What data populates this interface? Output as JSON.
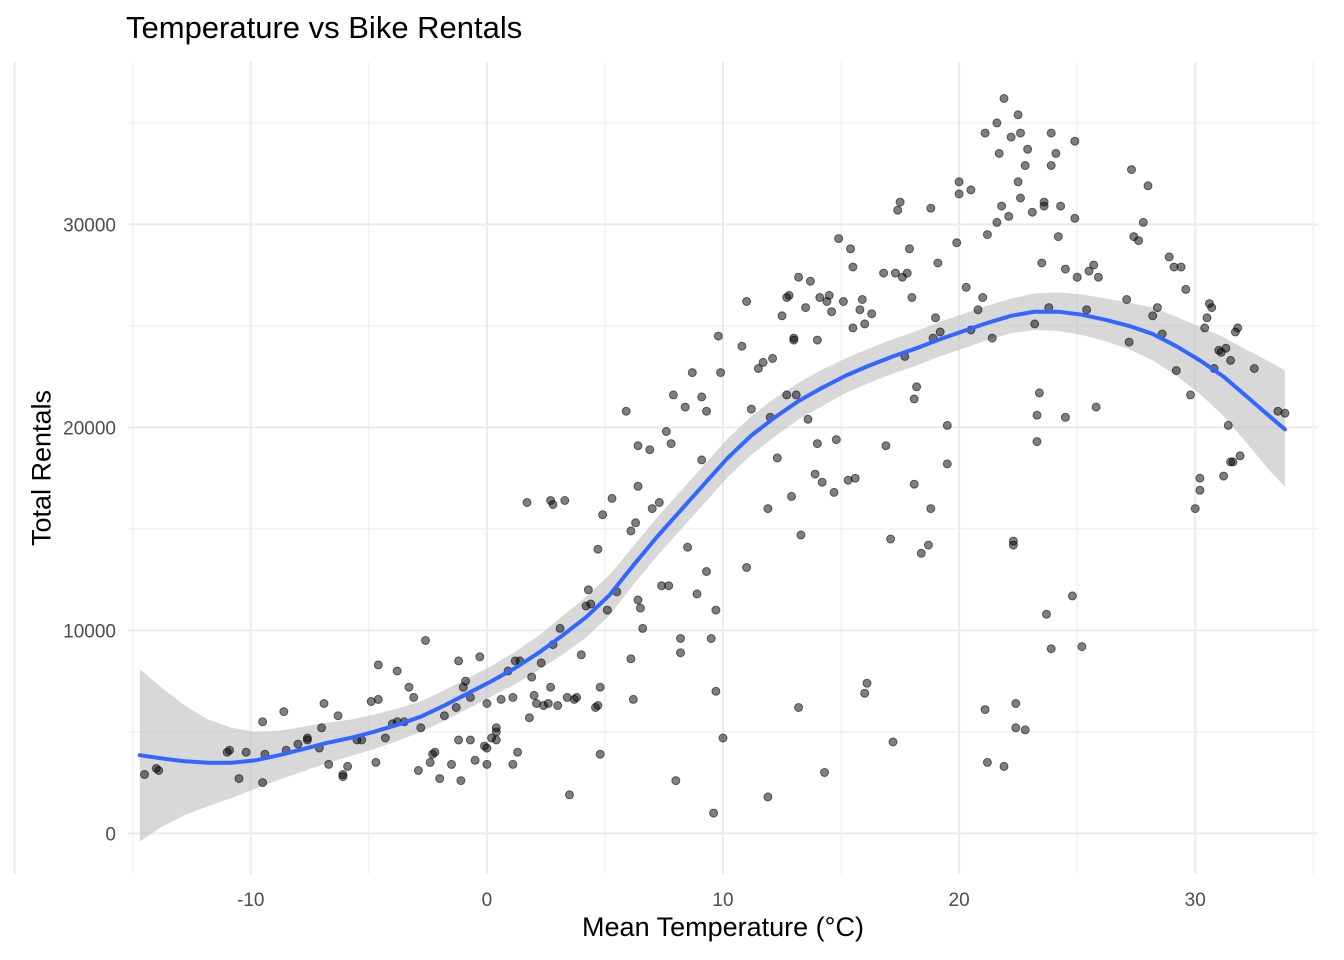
{
  "chart_data": {
    "type": "scatter",
    "title": "Temperature vs Bike Rentals",
    "xlabel": "Mean Temperature (°C)",
    "ylabel": "Total Rentals",
    "xlim": [
      -15.2,
      35.2
    ],
    "ylim": [
      -2000,
      38000
    ],
    "x_ticks": [
      -10,
      0,
      10,
      20,
      30
    ],
    "y_ticks": [
      0,
      10000,
      20000,
      30000
    ],
    "grid": true,
    "legend": "none",
    "colors": {
      "points": "#000000",
      "smooth_line": "#3366ff",
      "ribbon": "#bebebe",
      "grid": "#ebebeb",
      "tick_label": "#4d4d4d"
    },
    "points": [
      [
        -14.5,
        2900
      ],
      [
        -14,
        3200
      ],
      [
        -13.9,
        3100
      ],
      [
        -11,
        4000
      ],
      [
        -10.9,
        4100
      ],
      [
        -10.5,
        2700
      ],
      [
        -10.2,
        4000
      ],
      [
        -9.5,
        5500
      ],
      [
        -9.4,
        3900
      ],
      [
        -9.5,
        2500
      ],
      [
        -8.6,
        6000
      ],
      [
        -8.5,
        4100
      ],
      [
        -8,
        4400
      ],
      [
        -7.6,
        4600
      ],
      [
        -7.6,
        4700
      ],
      [
        -7.1,
        4200
      ],
      [
        -7,
        5200
      ],
      [
        -6.9,
        6400
      ],
      [
        -6.7,
        3400
      ],
      [
        -6.3,
        5800
      ],
      [
        -6.1,
        2900
      ],
      [
        -6.1,
        2800
      ],
      [
        -5.9,
        3300
      ],
      [
        -5.5,
        4600
      ],
      [
        -5.3,
        4600
      ],
      [
        -4.9,
        6500
      ],
      [
        -4.7,
        3500
      ],
      [
        -4.6,
        6600
      ],
      [
        -4.6,
        8300
      ],
      [
        -4.3,
        4700
      ],
      [
        -4,
        5400
      ],
      [
        -3.8,
        5500
      ],
      [
        -3.8,
        8000
      ],
      [
        -3.5,
        5500
      ],
      [
        -3.3,
        7200
      ],
      [
        -3.1,
        6700
      ],
      [
        -2.9,
        3100
      ],
      [
        -2.8,
        5200
      ],
      [
        -2.6,
        9500
      ],
      [
        -2.4,
        3500
      ],
      [
        -2.3,
        3900
      ],
      [
        -2.2,
        4000
      ],
      [
        -2,
        2700
      ],
      [
        -1.8,
        5800
      ],
      [
        -1.5,
        3400
      ],
      [
        -1.3,
        6200
      ],
      [
        -1.2,
        4600
      ],
      [
        -1.2,
        8500
      ],
      [
        -1.1,
        2600
      ],
      [
        -1,
        7200
      ],
      [
        -0.9,
        7500
      ],
      [
        -0.7,
        6700
      ],
      [
        -0.7,
        4600
      ],
      [
        -0.5,
        3600
      ],
      [
        -0.3,
        8700
      ],
      [
        -0.1,
        4300
      ],
      [
        0,
        3400
      ],
      [
        0,
        4200
      ],
      [
        0,
        6400
      ],
      [
        0.2,
        4700
      ],
      [
        0.4,
        5000
      ],
      [
        0.4,
        5200
      ],
      [
        0.4,
        4600
      ],
      [
        0.6,
        6600
      ],
      [
        0.9,
        8000
      ],
      [
        1.1,
        6700
      ],
      [
        1.1,
        3400
      ],
      [
        1.2,
        8500
      ],
      [
        1.3,
        4000
      ],
      [
        1.4,
        8500
      ],
      [
        1.7,
        16300
      ],
      [
        1.8,
        5700
      ],
      [
        1.9,
        7700
      ],
      [
        2,
        6800
      ],
      [
        2.1,
        6400
      ],
      [
        2.3,
        8400
      ],
      [
        2.4,
        6300
      ],
      [
        2.6,
        6400
      ],
      [
        2.7,
        16400
      ],
      [
        2.7,
        7200
      ],
      [
        2.8,
        16200
      ],
      [
        2.8,
        9300
      ],
      [
        3,
        6300
      ],
      [
        3.1,
        10100
      ],
      [
        3.3,
        16400
      ],
      [
        3.4,
        6700
      ],
      [
        3.5,
        1900
      ],
      [
        3.7,
        6600
      ],
      [
        3.8,
        6700
      ],
      [
        4,
        8800
      ],
      [
        4.2,
        11200
      ],
      [
        4.3,
        12000
      ],
      [
        4.4,
        11300
      ],
      [
        4.6,
        6200
      ],
      [
        4.7,
        6300
      ],
      [
        4.7,
        14000
      ],
      [
        4.8,
        3900
      ],
      [
        4.8,
        7200
      ],
      [
        4.9,
        15700
      ],
      [
        5.1,
        11000
      ],
      [
        5.3,
        16500
      ],
      [
        5.5,
        11900
      ],
      [
        5.9,
        20800
      ],
      [
        6.1,
        14900
      ],
      [
        6.3,
        15300
      ],
      [
        6.1,
        8600
      ],
      [
        6.2,
        6600
      ],
      [
        6.4,
        17100
      ],
      [
        6.4,
        11500
      ],
      [
        6.4,
        19100
      ],
      [
        6.5,
        11100
      ],
      [
        6.6,
        10100
      ],
      [
        6.9,
        18900
      ],
      [
        7,
        16000
      ],
      [
        7.3,
        16300
      ],
      [
        7.4,
        12200
      ],
      [
        7.6,
        19800
      ],
      [
        7.7,
        12200
      ],
      [
        7.8,
        19200
      ],
      [
        7.9,
        21600
      ],
      [
        8,
        2600
      ],
      [
        8.2,
        8900
      ],
      [
        8.2,
        9600
      ],
      [
        8.4,
        21000
      ],
      [
        8.5,
        14100
      ],
      [
        8.7,
        22700
      ],
      [
        8.9,
        11800
      ],
      [
        9.1,
        21500
      ],
      [
        9.1,
        18400
      ],
      [
        9.3,
        20800
      ],
      [
        9.3,
        12900
      ],
      [
        9.5,
        9600
      ],
      [
        9.6,
        1000
      ],
      [
        9.7,
        11000
      ],
      [
        9.7,
        7000
      ],
      [
        9.8,
        24500
      ],
      [
        9.9,
        22700
      ],
      [
        10,
        4700
      ],
      [
        10.8,
        24000
      ],
      [
        11,
        13100
      ],
      [
        11,
        26200
      ],
      [
        11.2,
        20900
      ],
      [
        11.5,
        22900
      ],
      [
        11.7,
        23200
      ],
      [
        11.9,
        16000
      ],
      [
        11.9,
        1800
      ],
      [
        12,
        20500
      ],
      [
        12.1,
        23400
      ],
      [
        12.3,
        18500
      ],
      [
        12.5,
        25500
      ],
      [
        12.7,
        21600
      ],
      [
        12.7,
        26400
      ],
      [
        12.8,
        26500
      ],
      [
        12.9,
        16600
      ],
      [
        13,
        24400
      ],
      [
        13,
        24300
      ],
      [
        13.1,
        21600
      ],
      [
        13.2,
        27400
      ],
      [
        13.2,
        6200
      ],
      [
        13.3,
        14700
      ],
      [
        13.5,
        25900
      ],
      [
        13.6,
        20400
      ],
      [
        13.7,
        27200
      ],
      [
        13.9,
        17700
      ],
      [
        14,
        24300
      ],
      [
        14,
        19200
      ],
      [
        14.1,
        26400
      ],
      [
        14.2,
        17300
      ],
      [
        14.3,
        3000
      ],
      [
        14.4,
        26200
      ],
      [
        14.5,
        26500
      ],
      [
        14.6,
        25700
      ],
      [
        14.7,
        16800
      ],
      [
        14.8,
        19400
      ],
      [
        14.9,
        29300
      ],
      [
        15.1,
        26200
      ],
      [
        15.3,
        17400
      ],
      [
        15.4,
        28800
      ],
      [
        15.5,
        27900
      ],
      [
        15.5,
        24900
      ],
      [
        15.6,
        17500
      ],
      [
        15.8,
        25800
      ],
      [
        15.9,
        26300
      ],
      [
        16,
        6900
      ],
      [
        16.1,
        7400
      ],
      [
        16,
        25100
      ],
      [
        16.3,
        25600
      ],
      [
        16.8,
        27600
      ],
      [
        16.9,
        19100
      ],
      [
        17.1,
        14500
      ],
      [
        17.2,
        4500
      ],
      [
        17.3,
        27600
      ],
      [
        17.4,
        30700
      ],
      [
        17.5,
        31100
      ],
      [
        17.6,
        27400
      ],
      [
        17.7,
        23500
      ],
      [
        17.8,
        27600
      ],
      [
        17.9,
        28800
      ],
      [
        18,
        26400
      ],
      [
        18.1,
        17200
      ],
      [
        18.1,
        21400
      ],
      [
        18.2,
        22000
      ],
      [
        18.4,
        13800
      ],
      [
        18.7,
        14200
      ],
      [
        18.8,
        16000
      ],
      [
        18.8,
        30800
      ],
      [
        18.9,
        24400
      ],
      [
        19,
        25400
      ],
      [
        19.1,
        28100
      ],
      [
        19.2,
        24700
      ],
      [
        19.5,
        18200
      ],
      [
        19.5,
        20100
      ],
      [
        19.9,
        29100
      ],
      [
        20,
        31500
      ],
      [
        20,
        32100
      ],
      [
        20.3,
        26900
      ],
      [
        20.5,
        24800
      ],
      [
        20.5,
        31700
      ],
      [
        20.8,
        25800
      ],
      [
        21,
        26400
      ],
      [
        21.1,
        6100
      ],
      [
        21.1,
        34500
      ],
      [
        21.2,
        3500
      ],
      [
        21.2,
        29500
      ],
      [
        21.4,
        24400
      ],
      [
        21.6,
        30100
      ],
      [
        21.6,
        35000
      ],
      [
        21.7,
        33500
      ],
      [
        21.8,
        30900
      ],
      [
        21.9,
        3300
      ],
      [
        21.9,
        36200
      ],
      [
        22.1,
        30400
      ],
      [
        22.2,
        34300
      ],
      [
        22.3,
        14200
      ],
      [
        22.3,
        14400
      ],
      [
        22.4,
        6400
      ],
      [
        22.4,
        5200
      ],
      [
        22.5,
        32100
      ],
      [
        22.5,
        35400
      ],
      [
        22.6,
        31300
      ],
      [
        22.6,
        34500
      ],
      [
        22.8,
        5100
      ],
      [
        22.8,
        32900
      ],
      [
        22.9,
        33700
      ],
      [
        23.1,
        30600
      ],
      [
        23.2,
        25100
      ],
      [
        23.3,
        19300
      ],
      [
        23.3,
        20600
      ],
      [
        23.4,
        21700
      ],
      [
        23.5,
        28100
      ],
      [
        23.6,
        30900
      ],
      [
        23.6,
        31100
      ],
      [
        23.7,
        10800
      ],
      [
        23.8,
        25900
      ],
      [
        23.9,
        9100
      ],
      [
        23.9,
        34500
      ],
      [
        23.9,
        32900
      ],
      [
        24.1,
        33500
      ],
      [
        24.2,
        29400
      ],
      [
        24.3,
        30900
      ],
      [
        24.5,
        27800
      ],
      [
        24.5,
        20500
      ],
      [
        24.8,
        11700
      ],
      [
        24.9,
        34100
      ],
      [
        24.9,
        30300
      ],
      [
        25,
        27400
      ],
      [
        25.2,
        9200
      ],
      [
        25.4,
        25800
      ],
      [
        25.5,
        27700
      ],
      [
        25.7,
        28000
      ],
      [
        25.8,
        21000
      ],
      [
        25.9,
        27400
      ],
      [
        27.1,
        26300
      ],
      [
        27.2,
        24200
      ],
      [
        27.3,
        32700
      ],
      [
        27.4,
        29400
      ],
      [
        27.6,
        29200
      ],
      [
        27.8,
        30100
      ],
      [
        28,
        31900
      ],
      [
        28.2,
        25500
      ],
      [
        28.4,
        25900
      ],
      [
        28.6,
        24600
      ],
      [
        28.9,
        28400
      ],
      [
        29.1,
        27900
      ],
      [
        29.2,
        22800
      ],
      [
        29.4,
        27900
      ],
      [
        29.6,
        26800
      ],
      [
        29.8,
        21600
      ],
      [
        30,
        16000
      ],
      [
        30.2,
        17500
      ],
      [
        30.2,
        16900
      ],
      [
        30.4,
        24900
      ],
      [
        30.5,
        25400
      ],
      [
        30.6,
        26100
      ],
      [
        30.7,
        25900
      ],
      [
        30.8,
        22900
      ],
      [
        31,
        23800
      ],
      [
        31.1,
        23700
      ],
      [
        31.2,
        17600
      ],
      [
        31.3,
        23900
      ],
      [
        31.4,
        20100
      ],
      [
        31.5,
        23300
      ],
      [
        31.5,
        18300
      ],
      [
        31.6,
        18300
      ],
      [
        31.7,
        24700
      ],
      [
        31.8,
        24900
      ],
      [
        31.9,
        18600
      ],
      [
        32.5,
        22900
      ],
      [
        33.5,
        20800
      ],
      [
        33.8,
        20700
      ]
    ],
    "smooth_line": [
      [
        -14.7,
        3850
      ],
      [
        -13.8,
        3700
      ],
      [
        -12.8,
        3550
      ],
      [
        -11.8,
        3480
      ],
      [
        -10.8,
        3480
      ],
      [
        -9.8,
        3600
      ],
      [
        -8.8,
        3850
      ],
      [
        -7.8,
        4150
      ],
      [
        -6.8,
        4450
      ],
      [
        -5.8,
        4700
      ],
      [
        -4.8,
        5000
      ],
      [
        -3.8,
        5350
      ],
      [
        -2.8,
        5750
      ],
      [
        -1.8,
        6300
      ],
      [
        -0.8,
        6900
      ],
      [
        0.2,
        7500
      ],
      [
        1.2,
        8150
      ],
      [
        2.2,
        8900
      ],
      [
        3.2,
        9750
      ],
      [
        4.2,
        10650
      ],
      [
        5.2,
        11750
      ],
      [
        6.2,
        13200
      ],
      [
        7.2,
        14600
      ],
      [
        8.2,
        15900
      ],
      [
        9.2,
        17200
      ],
      [
        10.2,
        18500
      ],
      [
        11.2,
        19600
      ],
      [
        12.2,
        20500
      ],
      [
        13.2,
        21300
      ],
      [
        14.2,
        21950
      ],
      [
        15.2,
        22550
      ],
      [
        16.2,
        23050
      ],
      [
        17.2,
        23500
      ],
      [
        18.2,
        23900
      ],
      [
        19.2,
        24350
      ],
      [
        20.2,
        24750
      ],
      [
        21.2,
        25150
      ],
      [
        22.2,
        25500
      ],
      [
        23.2,
        25700
      ],
      [
        24.2,
        25700
      ],
      [
        25.2,
        25550
      ],
      [
        26.2,
        25300
      ],
      [
        27.2,
        25000
      ],
      [
        28.2,
        24600
      ],
      [
        29.2,
        24000
      ],
      [
        30.2,
        23300
      ],
      [
        31.2,
        22500
      ],
      [
        32.2,
        21500
      ],
      [
        33.2,
        20500
      ],
      [
        33.8,
        19900
      ]
    ],
    "ribbon": [
      [
        -14.7,
        -400,
        8100
      ],
      [
        -13.8,
        300,
        7200
      ],
      [
        -12.8,
        900,
        6300
      ],
      [
        -11.8,
        1350,
        5600
      ],
      [
        -10.8,
        1750,
        5200
      ],
      [
        -9.8,
        2200,
        5000
      ],
      [
        -8.8,
        2650,
        5050
      ],
      [
        -7.8,
        3050,
        5250
      ],
      [
        -6.8,
        3450,
        5450
      ],
      [
        -5.8,
        3800,
        5600
      ],
      [
        -4.8,
        4150,
        5850
      ],
      [
        -3.8,
        4550,
        6150
      ],
      [
        -2.8,
        5000,
        6500
      ],
      [
        -1.8,
        5550,
        7050
      ],
      [
        -0.8,
        6150,
        7650
      ],
      [
        0.2,
        6750,
        8250
      ],
      [
        1.2,
        7350,
        8950
      ],
      [
        2.2,
        8050,
        9750
      ],
      [
        3.2,
        8800,
        10700
      ],
      [
        4.2,
        9650,
        11650
      ],
      [
        5.2,
        10750,
        12750
      ],
      [
        6.2,
        12250,
        14150
      ],
      [
        7.2,
        13650,
        15550
      ],
      [
        8.2,
        14950,
        16850
      ],
      [
        9.2,
        16250,
        18150
      ],
      [
        10.2,
        17550,
        19450
      ],
      [
        11.2,
        18650,
        20550
      ],
      [
        12.2,
        19550,
        21450
      ],
      [
        13.2,
        20400,
        22200
      ],
      [
        14.2,
        21050,
        22850
      ],
      [
        15.2,
        21700,
        23400
      ],
      [
        16.2,
        22200,
        23900
      ],
      [
        17.2,
        22650,
        24350
      ],
      [
        18.2,
        23050,
        24750
      ],
      [
        19.2,
        23500,
        25200
      ],
      [
        20.2,
        23900,
        25600
      ],
      [
        21.2,
        24300,
        26000
      ],
      [
        22.2,
        24650,
        26350
      ],
      [
        23.2,
        24800,
        26600
      ],
      [
        24.2,
        24750,
        26650
      ],
      [
        25.2,
        24550,
        26550
      ],
      [
        26.2,
        24250,
        26350
      ],
      [
        27.2,
        23850,
        26150
      ],
      [
        28.2,
        23300,
        25900
      ],
      [
        29.2,
        22550,
        25450
      ],
      [
        30.2,
        21650,
        24950
      ],
      [
        31.2,
        20550,
        24450
      ],
      [
        32.2,
        19200,
        23800
      ],
      [
        33.2,
        17800,
        23200
      ],
      [
        33.8,
        17100,
        22800
      ]
    ]
  }
}
